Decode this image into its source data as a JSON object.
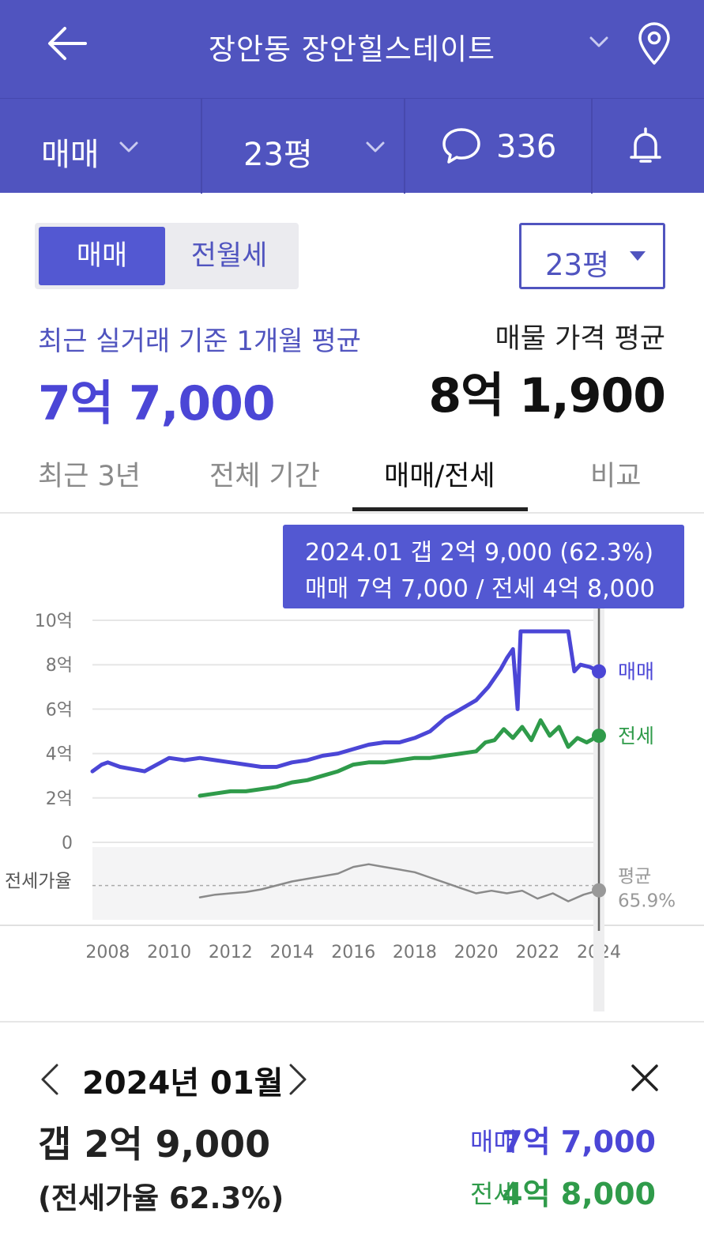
{
  "header": {
    "title": "장안동 장안힐스테이트",
    "trade_type": "매매",
    "area": "23평",
    "comment_count": "336",
    "icons": [
      "back-arrow-icon",
      "chevron-down-icon",
      "map-pin-icon",
      "chat-bubble-icon",
      "bell-icon"
    ]
  },
  "summary": {
    "segment": {
      "selected": "매매",
      "other": "전월세"
    },
    "area_select": "23평",
    "recent_label": "최근 실거래 기준 1개월 평균",
    "recent_value": "7억 7,000",
    "listing_label": "매물 가격 평균",
    "listing_value": "8억 1,900"
  },
  "tabs": [
    {
      "label": "최근 3년",
      "selected": false
    },
    {
      "label": "전체 기간",
      "selected": false
    },
    {
      "label": "매매/전세",
      "selected": true
    },
    {
      "label": "비교",
      "selected": false
    }
  ],
  "tooltip": {
    "line1": "2024.01  갭 2억 9,000 (62.3%)",
    "line2": "매매 7억 7,000 / 전세 4억 8,000"
  },
  "chart_data": {
    "type": "line",
    "y_unit": "억",
    "y_ticks": [
      "10억",
      "8억",
      "6억",
      "4억",
      "2억",
      "0"
    ],
    "ylim": [
      0,
      10
    ],
    "x_ticks": [
      "2008",
      "2010",
      "2012",
      "2014",
      "2016",
      "2018",
      "2020",
      "2022",
      "2024"
    ],
    "xlim": [
      2007.5,
      2024.0
    ],
    "grid": true,
    "series": [
      {
        "name": "매매",
        "color": "#4b46d6",
        "x": [
          2007.5,
          2007.8,
          2008.0,
          2008.4,
          2008.8,
          2009.2,
          2009.6,
          2010.0,
          2010.5,
          2011.0,
          2011.5,
          2012.0,
          2012.5,
          2013.0,
          2013.5,
          2014.0,
          2014.5,
          2015.0,
          2015.5,
          2016.0,
          2016.5,
          2017.0,
          2017.5,
          2018.0,
          2018.5,
          2019.0,
          2019.5,
          2020.0,
          2020.4,
          2020.8,
          2021.0,
          2021.2,
          2021.35,
          2021.45,
          2021.6,
          2022.0,
          2022.5,
          2023.0,
          2023.2,
          2023.4,
          2023.7,
          2024.0
        ],
        "values": [
          3.2,
          3.5,
          3.6,
          3.4,
          3.3,
          3.2,
          3.5,
          3.8,
          3.7,
          3.8,
          3.7,
          3.6,
          3.5,
          3.4,
          3.4,
          3.6,
          3.7,
          3.9,
          4.0,
          4.2,
          4.4,
          4.5,
          4.5,
          4.7,
          5.0,
          5.6,
          6.0,
          6.4,
          7.0,
          7.8,
          8.3,
          8.7,
          6.0,
          9.5,
          9.5,
          9.5,
          9.5,
          9.5,
          7.7,
          8.0,
          7.9,
          7.7
        ]
      },
      {
        "name": "전세",
        "color": "#2f9b4a",
        "x": [
          2011.0,
          2011.5,
          2012.0,
          2012.5,
          2013.0,
          2013.5,
          2014.0,
          2014.5,
          2015.0,
          2015.5,
          2016.0,
          2016.5,
          2017.0,
          2017.5,
          2018.0,
          2018.5,
          2019.0,
          2019.5,
          2020.0,
          2020.3,
          2020.6,
          2020.9,
          2021.2,
          2021.5,
          2021.8,
          2022.1,
          2022.4,
          2022.7,
          2023.0,
          2023.3,
          2023.6,
          2024.0
        ],
        "values": [
          2.1,
          2.2,
          2.3,
          2.3,
          2.4,
          2.5,
          2.7,
          2.8,
          3.0,
          3.2,
          3.5,
          3.6,
          3.6,
          3.7,
          3.8,
          3.8,
          3.9,
          4.0,
          4.1,
          4.5,
          4.6,
          5.1,
          4.7,
          5.2,
          4.6,
          5.5,
          4.8,
          5.2,
          4.3,
          4.7,
          4.5,
          4.8
        ]
      },
      {
        "name": "전세가율",
        "color": "#8a8a8a",
        "x": [
          2011.0,
          2011.5,
          2012.0,
          2012.5,
          2013.0,
          2013.5,
          2014.0,
          2014.5,
          2015.0,
          2015.5,
          2016.0,
          2016.5,
          2017.0,
          2017.5,
          2018.0,
          2018.5,
          2019.0,
          2019.5,
          2020.0,
          2020.5,
          2021.0,
          2021.5,
          2022.0,
          2022.5,
          2023.0,
          2023.5,
          2024.0
        ],
        "values": [
          57,
          59,
          60,
          61,
          63,
          66,
          69,
          71,
          73,
          75,
          80,
          82,
          80,
          78,
          76,
          72,
          68,
          64,
          60,
          62,
          60,
          62,
          56,
          60,
          54,
          59,
          62.3
        ]
      }
    ],
    "ratio_band_label": "전세가율",
    "ratio_avg_label": "평균",
    "ratio_avg_value": "65.9%",
    "ratio_avg": 65.9,
    "ratio_range": [
      40,
      95
    ],
    "selected_x": 2024.0
  },
  "detail": {
    "month": "2024년 01월",
    "gap": "갭 2억 9,000",
    "ratio_text": "(전세가율 62.3%)",
    "sale_label": "매매",
    "sale_value": "7억 7,000",
    "jeonse_label": "전세",
    "jeonse_value": "4억 8,000"
  }
}
